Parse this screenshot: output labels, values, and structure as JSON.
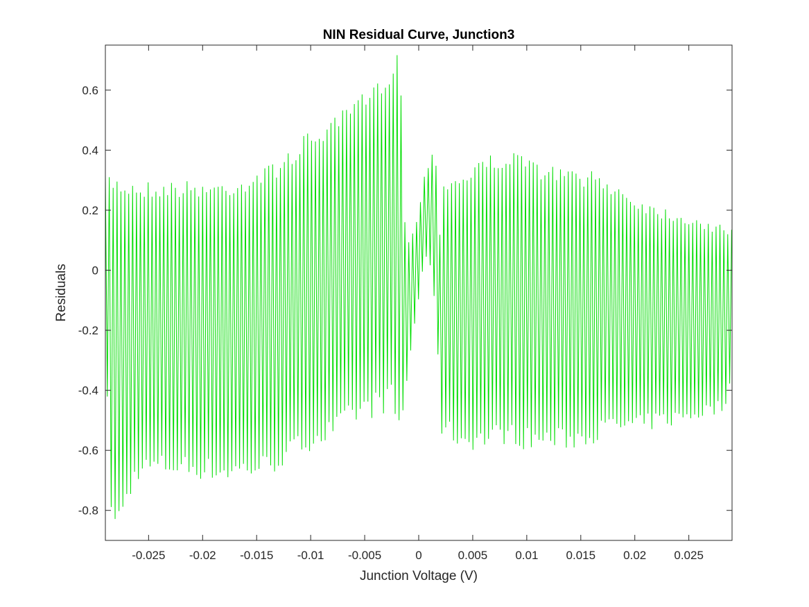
{
  "chart_data": {
    "type": "line",
    "title": "NIN Residual Curve, Junction3",
    "xlabel": "Junction Voltage (V)",
    "ylabel": "Residuals",
    "xlim": [
      -0.029,
      0.029
    ],
    "ylim": [
      -0.9,
      0.75
    ],
    "grid": false,
    "x_ticks": [
      -0.025,
      -0.02,
      -0.015,
      -0.01,
      -0.005,
      0,
      0.005,
      0.01,
      0.015,
      0.02,
      0.025
    ],
    "x_tick_labels": [
      "-0.025",
      "-0.02",
      "-0.015",
      "-0.01",
      "-0.005",
      "0",
      "0.005",
      "0.01",
      "0.015",
      "0.02",
      "0.025"
    ],
    "y_ticks": [
      -0.8,
      -0.6,
      -0.4,
      -0.2,
      0,
      0.2,
      0.4,
      0.6
    ],
    "y_tick_labels": [
      "-0.8",
      "-0.6",
      "-0.4",
      "-0.2",
      "0",
      "0.2",
      "0.4",
      "0.6"
    ],
    "series": [
      {
        "name": "Residuals",
        "color": "#00dd00",
        "oscillation_period_v": 0.00036,
        "envelope_x": [
          -0.029,
          -0.0285,
          -0.028,
          -0.026,
          -0.024,
          -0.022,
          -0.02,
          -0.018,
          -0.016,
          -0.014,
          -0.012,
          -0.01,
          -0.008,
          -0.006,
          -0.004,
          -0.0025,
          -0.0018,
          -0.0015
        ],
        "envelope_max": [
          0.32,
          0.33,
          0.32,
          0.3,
          0.3,
          0.3,
          0.3,
          0.3,
          0.32,
          0.35,
          0.4,
          0.47,
          0.5,
          0.57,
          0.62,
          0.7,
          0.75,
          0.55
        ],
        "envelope_min": [
          -0.3,
          -0.8,
          -0.9,
          -0.7,
          -0.69,
          -0.69,
          -0.7,
          -0.71,
          -0.7,
          -0.69,
          -0.65,
          -0.6,
          -0.58,
          -0.52,
          -0.49,
          -0.47,
          -0.58,
          -0.45
        ],
        "center_x": [
          -0.0015,
          -0.0008,
          0.0,
          0.0004,
          0.0008,
          0.0012,
          0.0015,
          0.0018,
          0.002
        ],
        "center_max": [
          0.2,
          0.1,
          0.2,
          0.3,
          0.35,
          0.4,
          0.42,
          0.3,
          0.1
        ],
        "center_min": [
          -0.5,
          -0.3,
          -0.1,
          0.0,
          0.05,
          -0.05,
          -0.15,
          -0.3,
          -0.45
        ],
        "right_x": [
          0.002,
          0.004,
          0.006,
          0.008,
          0.01,
          0.012,
          0.014,
          0.016,
          0.018,
          0.02,
          0.022,
          0.024,
          0.026,
          0.028,
          0.029
        ],
        "right_max": [
          0.3,
          0.33,
          0.38,
          0.4,
          0.38,
          0.35,
          0.34,
          0.33,
          0.3,
          0.25,
          0.22,
          0.2,
          0.18,
          0.15,
          0.14
        ],
        "right_min": [
          -0.55,
          -0.6,
          -0.6,
          -0.58,
          -0.6,
          -0.6,
          -0.6,
          -0.58,
          -0.55,
          -0.55,
          -0.53,
          -0.52,
          -0.5,
          -0.48,
          -0.4
        ]
      }
    ]
  }
}
